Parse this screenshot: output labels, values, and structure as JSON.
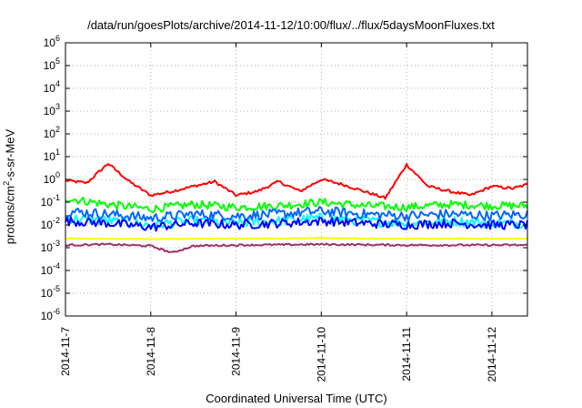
{
  "chart_data": {
    "type": "line",
    "title": "/data/run/goesPlots/archive/2014-11-12/10:00/flux/../flux/5daysMoonFluxes.txt",
    "xlabel": "Coordinated Universal Time (UTC)",
    "ylabel": "protons/cm2-s-sr-MeV",
    "y_scale": "log",
    "ylim": [
      1e-06,
      1000000.0
    ],
    "xlim": [
      "2014-11-07",
      "2014-11-12 10:00"
    ],
    "x_ticks": [
      "2014-11-7",
      "2014-11-8",
      "2014-11-9",
      "2014-11-10",
      "2014-11-11",
      "2014-11-12"
    ],
    "y_ticks": [
      "1e-6",
      "1e-5",
      "1e-4",
      "1e-3",
      "1e-2",
      "1e-1",
      "1e0",
      "1e1",
      "1e2",
      "1e3",
      "1e4",
      "1e5",
      "1e6"
    ],
    "grid": true,
    "legend": "none",
    "series": [
      {
        "color": "#ff0000",
        "x": [
          "2014-11-07 00:00",
          "2014-11-07 06:00",
          "2014-11-07 12:00",
          "2014-11-07 18:00",
          "2014-11-08 00:00",
          "2014-11-08 06:00",
          "2014-11-08 12:00",
          "2014-11-08 18:00",
          "2014-11-09 00:00",
          "2014-11-09 06:00",
          "2014-11-09 12:00",
          "2014-11-09 18:00",
          "2014-11-10 00:00",
          "2014-11-10 06:00",
          "2014-11-10 12:00",
          "2014-11-10 18:00",
          "2014-11-11 00:00",
          "2014-11-11 06:00",
          "2014-11-11 12:00",
          "2014-11-11 18:00",
          "2014-11-12 00:00",
          "2014-11-12 06:00",
          "2014-11-12 10:00"
        ],
        "values": [
          0.9,
          0.7,
          5,
          0.8,
          0.2,
          0.3,
          0.5,
          0.8,
          0.2,
          0.3,
          0.8,
          0.3,
          1.0,
          0.6,
          0.3,
          0.15,
          4.5,
          0.5,
          0.3,
          0.2,
          0.5,
          0.4,
          0.6
        ]
      },
      {
        "color": "#00ff00",
        "x": [
          "2014-11-07 00:00",
          "2014-11-07 12:00",
          "2014-11-08 00:00",
          "2014-11-08 12:00",
          "2014-11-09 00:00",
          "2014-11-09 12:00",
          "2014-11-10 00:00",
          "2014-11-10 12:00",
          "2014-11-11 00:00",
          "2014-11-11 12:00",
          "2014-11-12 00:00",
          "2014-11-12 10:00"
        ],
        "values": [
          0.15,
          0.08,
          0.05,
          0.08,
          0.06,
          0.07,
          0.1,
          0.07,
          0.06,
          0.08,
          0.07,
          0.07
        ]
      },
      {
        "color": "#00ffff",
        "x": [
          "2014-11-07 00:00",
          "2014-11-07 12:00",
          "2014-11-08 00:00",
          "2014-11-08 12:00",
          "2014-11-09 00:00",
          "2014-11-09 12:00",
          "2014-11-10 00:00",
          "2014-11-10 12:00",
          "2014-11-11 00:00",
          "2014-11-11 12:00",
          "2014-11-12 00:00",
          "2014-11-12 10:00"
        ],
        "values": [
          0.02,
          0.015,
          0.01,
          0.015,
          0.012,
          0.015,
          0.02,
          0.015,
          0.012,
          0.015,
          0.012,
          0.012
        ]
      },
      {
        "color": "#0066ff",
        "x": [
          "2014-11-07 00:00",
          "2014-11-07 12:00",
          "2014-11-08 00:00",
          "2014-11-08 12:00",
          "2014-11-09 00:00",
          "2014-11-09 12:00",
          "2014-11-10 00:00",
          "2014-11-10 12:00",
          "2014-11-11 00:00",
          "2014-11-11 12:00",
          "2014-11-12 00:00",
          "2014-11-12 10:00"
        ],
        "values": [
          0.04,
          0.03,
          0.02,
          0.03,
          0.025,
          0.03,
          0.04,
          0.03,
          0.025,
          0.03,
          0.025,
          0.03
        ]
      },
      {
        "color": "#0000ff",
        "x": [
          "2014-11-07 00:00",
          "2014-11-07 12:00",
          "2014-11-08 00:00",
          "2014-11-08 12:00",
          "2014-11-09 00:00",
          "2014-11-09 12:00",
          "2014-11-10 00:00",
          "2014-11-10 12:00",
          "2014-11-11 00:00",
          "2014-11-11 12:00",
          "2014-11-12 00:00",
          "2014-11-12 10:00"
        ],
        "values": [
          0.015,
          0.012,
          0.008,
          0.012,
          0.01,
          0.012,
          0.015,
          0.012,
          0.01,
          0.012,
          0.01,
          0.01
        ]
      },
      {
        "color": "#ffff00",
        "x": [
          "2014-11-07 00:00",
          "2014-11-08 00:00",
          "2014-11-09 00:00",
          "2014-11-10 00:00",
          "2014-11-11 00:00",
          "2014-11-12 00:00",
          "2014-11-12 10:00"
        ],
        "values": [
          0.0025,
          0.0024,
          0.0025,
          0.0026,
          0.0025,
          0.0025,
          0.0025
        ]
      },
      {
        "color": "#993366",
        "x": [
          "2014-11-07 00:00",
          "2014-11-07 12:00",
          "2014-11-08 00:00",
          "2014-11-08 06:00",
          "2014-11-08 12:00",
          "2014-11-09 00:00",
          "2014-11-10 00:00",
          "2014-11-11 00:00",
          "2014-11-12 00:00",
          "2014-11-12 10:00"
        ],
        "values": [
          0.0013,
          0.0014,
          0.0012,
          0.0006,
          0.0012,
          0.0013,
          0.0014,
          0.0013,
          0.0013,
          0.0013
        ]
      }
    ]
  }
}
